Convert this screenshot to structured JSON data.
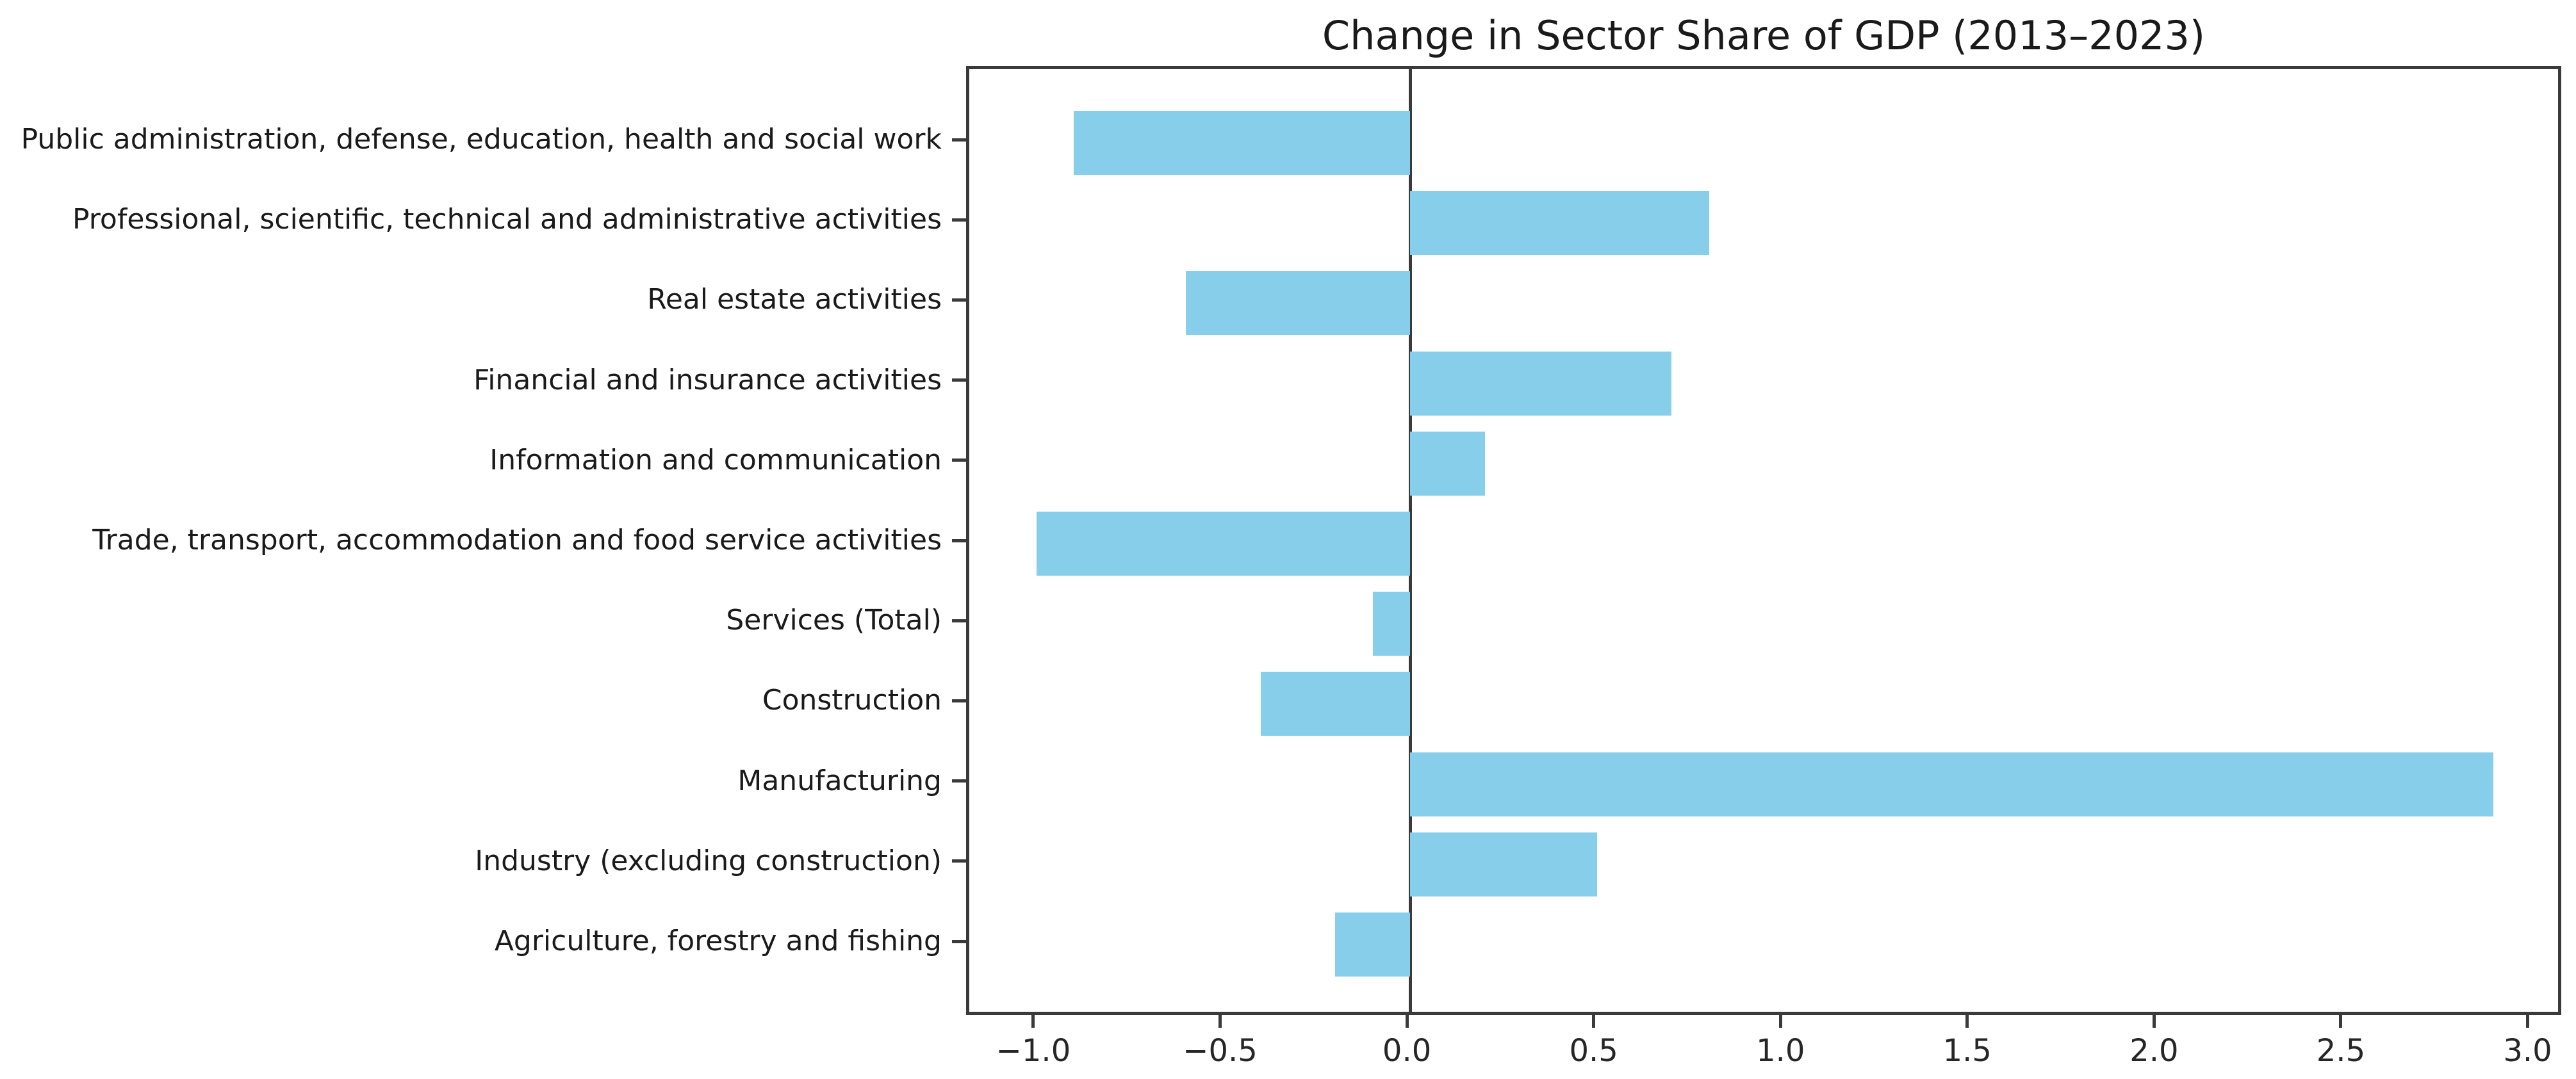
{
  "chart_data": {
    "type": "bar",
    "orientation": "horizontal",
    "title": "Change in Sector Share of GDP (2013–2023)",
    "xlabel": "",
    "ylabel": "",
    "categories": [
      "Public administration, defense, education, health and social work",
      "Professional, scientific, technical and administrative activities",
      "Real estate activities",
      "Financial and insurance activities",
      "Information and communication",
      "Trade, transport, accommodation and food service activities",
      "Services (Total)",
      "Construction",
      "Manufacturing",
      "Industry (excluding construction)",
      "Agriculture, forestry and fishing"
    ],
    "values": [
      -0.9,
      0.8,
      -0.6,
      0.7,
      0.2,
      -1.0,
      -0.1,
      -0.4,
      2.9,
      0.5,
      -0.2
    ],
    "xlim": [
      -1.18,
      3.09
    ],
    "xticks": [
      -1.0,
      -0.5,
      0.0,
      0.5,
      1.0,
      1.5,
      2.0,
      2.5,
      3.0
    ],
    "xtick_labels": [
      "−1.0",
      "−0.5",
      "0.0",
      "0.5",
      "1.0",
      "1.5",
      "2.0",
      "2.5",
      "3.0"
    ],
    "grid": false,
    "legend": null,
    "zero_line": true,
    "bar_color": "#87CEEB",
    "axis_color": "#3a3a3a",
    "text_color": "#1a1a1a",
    "background_color": "#ffffff"
  }
}
